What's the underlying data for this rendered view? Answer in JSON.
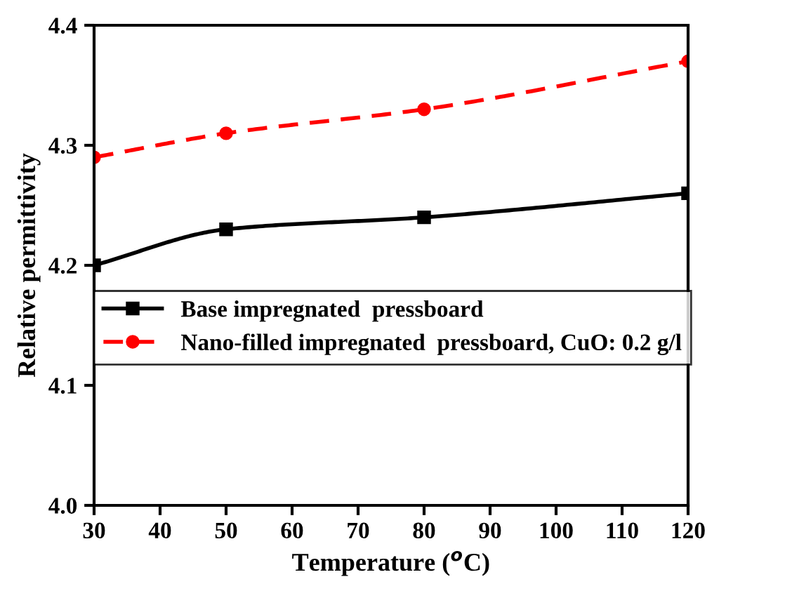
{
  "chart_data": {
    "type": "line",
    "xlabel": "Temperature ($^{o}$C)",
    "ylabel": "Relative permittivity",
    "x": [
      30,
      50,
      80,
      120
    ],
    "series": [
      {
        "name": "Base impregnated  pressboard",
        "color": "#000000",
        "values": [
          4.2,
          4.23,
          4.24,
          4.26
        ],
        "marker": "square",
        "line_style": "solid"
      },
      {
        "name": "Nano-filled impregnated  pressboard, CuO: 0.2 g/l",
        "color": "#ff0000",
        "values": [
          4.29,
          4.31,
          4.33,
          4.37
        ],
        "marker": "circle",
        "line_style": "dashed"
      }
    ],
    "xlim": [
      30,
      120
    ],
    "xticks": [
      30,
      40,
      50,
      60,
      70,
      80,
      90,
      100,
      110,
      120
    ],
    "ylim": [
      4.0,
      4.4
    ],
    "yticks": [
      {
        "value": 4.0,
        "label": "4.0"
      },
      {
        "value": 4.1,
        "label": "4.1"
      },
      {
        "value": 4.2,
        "label": "4.2"
      },
      {
        "value": 4.3,
        "label": "4.3"
      },
      {
        "value": 4.4,
        "label": "4.4"
      }
    ],
    "grid": false,
    "legend": "center left"
  }
}
